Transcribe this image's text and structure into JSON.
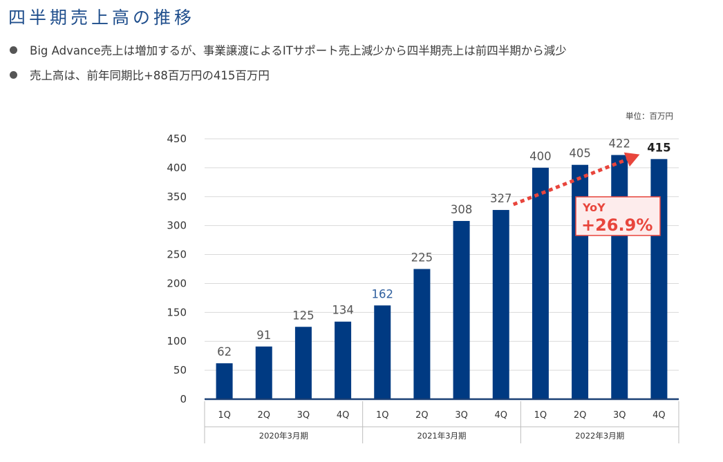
{
  "header": {
    "title": "四半期売上高の推移",
    "bullets": [
      "Big Advance売上は増加するが、事業譲渡によるITサポート売上減少から四半期売上は前四半期から減少",
      "売上高は、前年同期比+88百万円の415百万円"
    ]
  },
  "unit_label": "単位：百万円",
  "colors": {
    "bar": "#003A82",
    "accent": "#E8453C",
    "title": "#1F4E8C"
  },
  "chart_data": {
    "type": "bar",
    "categories": [
      "1Q",
      "2Q",
      "3Q",
      "4Q",
      "1Q",
      "2Q",
      "3Q",
      "4Q",
      "1Q",
      "2Q",
      "3Q",
      "4Q"
    ],
    "groups": [
      {
        "label": "2020年3月期",
        "count": 4
      },
      {
        "label": "2021年3月期",
        "count": 4
      },
      {
        "label": "2022年3月期",
        "count": 4
      }
    ],
    "series": [
      {
        "values": [
          62,
          91,
          125,
          134,
          162,
          225,
          308,
          327,
          400,
          405,
          422,
          415
        ]
      }
    ],
    "y_ticks": [
      0,
      50,
      100,
      150,
      200,
      250,
      300,
      350,
      400,
      450
    ],
    "ylim": [
      0,
      450
    ],
    "grid": true,
    "annotation": {
      "label": "YoY",
      "value": "+26.9%",
      "from_index": 7,
      "to_index": 11
    }
  }
}
